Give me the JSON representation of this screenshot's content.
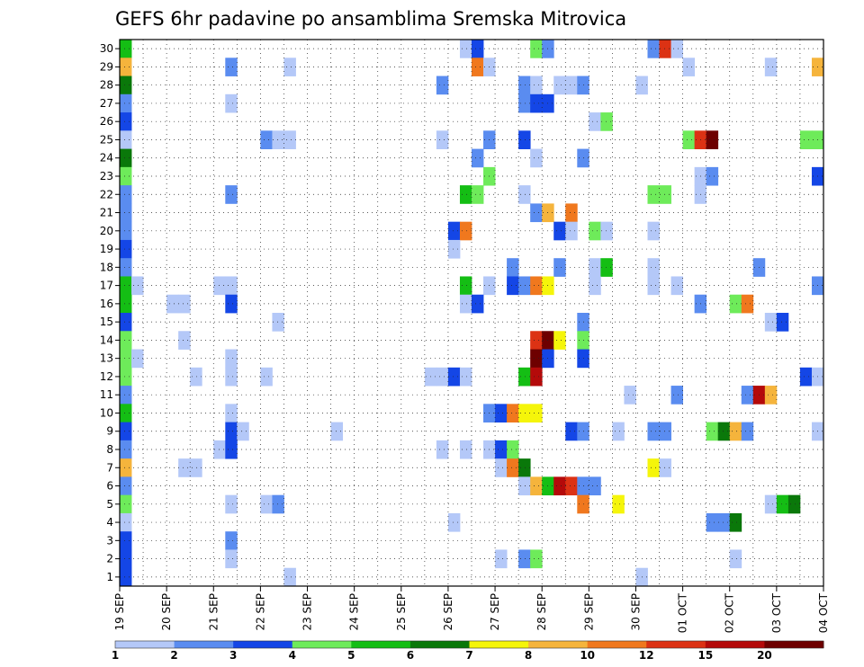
{
  "chart_data": {
    "type": "heatmap",
    "title": "GEFS 6hr padavine po ansamblima Sremska Mitrovica",
    "xlabel": "",
    "ylabel": "",
    "x_ticks": [
      "19 SEP",
      "20 SEP",
      "21 SEP",
      "22 SEP",
      "23 SEP",
      "24 SEP",
      "25 SEP",
      "26 SEP",
      "27 SEP",
      "28 SEP",
      "29 SEP",
      "30 SEP",
      "01 OCT",
      "02 OCT",
      "03 OCT",
      "04 OCT"
    ],
    "y_ticks": [
      "1",
      "2",
      "3",
      "4",
      "5",
      "6",
      "7",
      "8",
      "9",
      "10",
      "11",
      "12",
      "13",
      "14",
      "15",
      "16",
      "17",
      "18",
      "19",
      "20",
      "21",
      "22",
      "23",
      "24",
      "25",
      "26",
      "27",
      "28",
      "29",
      "30"
    ],
    "x_unit": "6-hour steps from 19 SEP 00Z",
    "xlim": [
      0,
      60
    ],
    "ylim": [
      0.5,
      30.5
    ],
    "grid": true,
    "legend": {
      "placement": "bottom",
      "levels": [
        "1",
        "2",
        "3",
        "4",
        "5",
        "6",
        "7",
        "8",
        "10",
        "12",
        "15",
        "20"
      ],
      "colors": [
        "#b4c8f8",
        "#5a8cf0",
        "#1446e6",
        "#6eeb5a",
        "#14be14",
        "#0a780a",
        "#f5f50a",
        "#f5b43c",
        "#f0781e",
        "#dc3214",
        "#b40a0a",
        "#6e0000"
      ]
    },
    "cells": [
      [
        30,
        1,
        4
      ],
      [
        30,
        30,
        0
      ],
      [
        30,
        31,
        2
      ],
      [
        30,
        36,
        3
      ],
      [
        30,
        37,
        1
      ],
      [
        30,
        46,
        1
      ],
      [
        30,
        47,
        9
      ],
      [
        30,
        48,
        0
      ],
      [
        29,
        1,
        7
      ],
      [
        29,
        10,
        1
      ],
      [
        29,
        15,
        0
      ],
      [
        29,
        31,
        8
      ],
      [
        29,
        32,
        0
      ],
      [
        29,
        49,
        0
      ],
      [
        29,
        56,
        0
      ],
      [
        29,
        60,
        7
      ],
      [
        28,
        1,
        5
      ],
      [
        28,
        28,
        1
      ],
      [
        28,
        35,
        1
      ],
      [
        28,
        36,
        0
      ],
      [
        28,
        38,
        0
      ],
      [
        28,
        39,
        0
      ],
      [
        28,
        40,
        1
      ],
      [
        28,
        45,
        0
      ],
      [
        27,
        1,
        1
      ],
      [
        27,
        10,
        0
      ],
      [
        27,
        35,
        1
      ],
      [
        27,
        36,
        2
      ],
      [
        27,
        37,
        2
      ],
      [
        26,
        1,
        2
      ],
      [
        26,
        41,
        0
      ],
      [
        26,
        42,
        3
      ],
      [
        25,
        1,
        0
      ],
      [
        25,
        13,
        1
      ],
      [
        25,
        14,
        0
      ],
      [
        25,
        15,
        0
      ],
      [
        25,
        28,
        0
      ],
      [
        25,
        32,
        1
      ],
      [
        25,
        35,
        2
      ],
      [
        25,
        49,
        3
      ],
      [
        25,
        50,
        9
      ],
      [
        25,
        51,
        11
      ],
      [
        25,
        59,
        3
      ],
      [
        25,
        60,
        3
      ],
      [
        24,
        1,
        5
      ],
      [
        24,
        31,
        1
      ],
      [
        24,
        36,
        0
      ],
      [
        24,
        40,
        1
      ],
      [
        23,
        1,
        3
      ],
      [
        23,
        32,
        3
      ],
      [
        23,
        50,
        0
      ],
      [
        23,
        51,
        1
      ],
      [
        23,
        60,
        2
      ],
      [
        22,
        1,
        1
      ],
      [
        22,
        10,
        1
      ],
      [
        22,
        30,
        4
      ],
      [
        22,
        31,
        3
      ],
      [
        22,
        35,
        0
      ],
      [
        22,
        46,
        3
      ],
      [
        22,
        47,
        3
      ],
      [
        22,
        50,
        0
      ],
      [
        21,
        1,
        1
      ],
      [
        21,
        36,
        1
      ],
      [
        21,
        37,
        7
      ],
      [
        21,
        39,
        8
      ],
      [
        20,
        1,
        1
      ],
      [
        20,
        29,
        2
      ],
      [
        20,
        30,
        8
      ],
      [
        20,
        38,
        2
      ],
      [
        20,
        39,
        0
      ],
      [
        20,
        41,
        3
      ],
      [
        20,
        42,
        0
      ],
      [
        20,
        46,
        0
      ],
      [
        19,
        1,
        2
      ],
      [
        19,
        29,
        0
      ],
      [
        18,
        1,
        1
      ],
      [
        18,
        34,
        1
      ],
      [
        18,
        38,
        1
      ],
      [
        18,
        41,
        0
      ],
      [
        18,
        42,
        4
      ],
      [
        18,
        46,
        0
      ],
      [
        18,
        55,
        1
      ],
      [
        17,
        1,
        4
      ],
      [
        17,
        2,
        0
      ],
      [
        17,
        9,
        0
      ],
      [
        17,
        10,
        0
      ],
      [
        17,
        30,
        4
      ],
      [
        17,
        32,
        0
      ],
      [
        17,
        34,
        2
      ],
      [
        17,
        35,
        1
      ],
      [
        17,
        36,
        8
      ],
      [
        17,
        37,
        6
      ],
      [
        17,
        41,
        0
      ],
      [
        17,
        46,
        0
      ],
      [
        17,
        48,
        0
      ],
      [
        17,
        60,
        1
      ],
      [
        16,
        1,
        4
      ],
      [
        16,
        10,
        2
      ],
      [
        16,
        5,
        0
      ],
      [
        16,
        6,
        0
      ],
      [
        16,
        30,
        0
      ],
      [
        16,
        31,
        2
      ],
      [
        16,
        50,
        1
      ],
      [
        16,
        53,
        3
      ],
      [
        16,
        54,
        8
      ],
      [
        15,
        1,
        2
      ],
      [
        15,
        14,
        0
      ],
      [
        15,
        40,
        1
      ],
      [
        15,
        56,
        0
      ],
      [
        15,
        57,
        2
      ],
      [
        14,
        1,
        3
      ],
      [
        14,
        6,
        0
      ],
      [
        14,
        36,
        9
      ],
      [
        14,
        37,
        11
      ],
      [
        14,
        38,
        6
      ],
      [
        14,
        40,
        3
      ],
      [
        13,
        1,
        3
      ],
      [
        13,
        2,
        0
      ],
      [
        13,
        10,
        0
      ],
      [
        13,
        36,
        11
      ],
      [
        13,
        37,
        2
      ],
      [
        13,
        40,
        2
      ],
      [
        12,
        1,
        3
      ],
      [
        12,
        7,
        0
      ],
      [
        12,
        10,
        0
      ],
      [
        12,
        13,
        0
      ],
      [
        12,
        27,
        0
      ],
      [
        12,
        28,
        0
      ],
      [
        12,
        29,
        2
      ],
      [
        12,
        30,
        0
      ],
      [
        12,
        35,
        4
      ],
      [
        12,
        36,
        10
      ],
      [
        12,
        59,
        2
      ],
      [
        12,
        60,
        0
      ],
      [
        11,
        1,
        1
      ],
      [
        11,
        44,
        0
      ],
      [
        11,
        48,
        1
      ],
      [
        11,
        54,
        1
      ],
      [
        11,
        55,
        10
      ],
      [
        11,
        56,
        7
      ],
      [
        10,
        1,
        4
      ],
      [
        10,
        10,
        0
      ],
      [
        10,
        32,
        1
      ],
      [
        10,
        33,
        2
      ],
      [
        10,
        34,
        8
      ],
      [
        10,
        35,
        6
      ],
      [
        10,
        36,
        6
      ],
      [
        9,
        1,
        2
      ],
      [
        9,
        10,
        2
      ],
      [
        9,
        11,
        0
      ],
      [
        9,
        19,
        0
      ],
      [
        9,
        39,
        2
      ],
      [
        9,
        40,
        1
      ],
      [
        9,
        43,
        0
      ],
      [
        9,
        46,
        1
      ],
      [
        9,
        47,
        1
      ],
      [
        9,
        51,
        3
      ],
      [
        9,
        52,
        5
      ],
      [
        9,
        53,
        7
      ],
      [
        9,
        54,
        1
      ],
      [
        9,
        60,
        0
      ],
      [
        8,
        1,
        1
      ],
      [
        8,
        9,
        0
      ],
      [
        8,
        10,
        2
      ],
      [
        8,
        28,
        0
      ],
      [
        8,
        30,
        0
      ],
      [
        8,
        32,
        0
      ],
      [
        8,
        33,
        2
      ],
      [
        8,
        34,
        3
      ],
      [
        7,
        1,
        7
      ],
      [
        7,
        6,
        0
      ],
      [
        7,
        7,
        0
      ],
      [
        7,
        33,
        0
      ],
      [
        7,
        34,
        8
      ],
      [
        7,
        35,
        5
      ],
      [
        7,
        46,
        6
      ],
      [
        7,
        47,
        0
      ],
      [
        6,
        1,
        1
      ],
      [
        6,
        35,
        0
      ],
      [
        6,
        36,
        7
      ],
      [
        6,
        37,
        4
      ],
      [
        6,
        38,
        10
      ],
      [
        6,
        39,
        9
      ],
      [
        6,
        40,
        1
      ],
      [
        6,
        41,
        1
      ],
      [
        5,
        1,
        3
      ],
      [
        5,
        10,
        0
      ],
      [
        5,
        13,
        0
      ],
      [
        5,
        14,
        1
      ],
      [
        5,
        40,
        8
      ],
      [
        5,
        43,
        6
      ],
      [
        5,
        56,
        0
      ],
      [
        5,
        57,
        4
      ],
      [
        5,
        58,
        5
      ],
      [
        4,
        1,
        0
      ],
      [
        4,
        29,
        0
      ],
      [
        4,
        51,
        1
      ],
      [
        4,
        52,
        1
      ],
      [
        4,
        53,
        5
      ],
      [
        3,
        1,
        2
      ],
      [
        3,
        10,
        1
      ],
      [
        2,
        1,
        2
      ],
      [
        2,
        10,
        0
      ],
      [
        2,
        33,
        0
      ],
      [
        2,
        35,
        1
      ],
      [
        2,
        36,
        3
      ],
      [
        2,
        53,
        0
      ],
      [
        1,
        1,
        2
      ],
      [
        1,
        15,
        0
      ],
      [
        1,
        45,
        0
      ]
    ]
  }
}
